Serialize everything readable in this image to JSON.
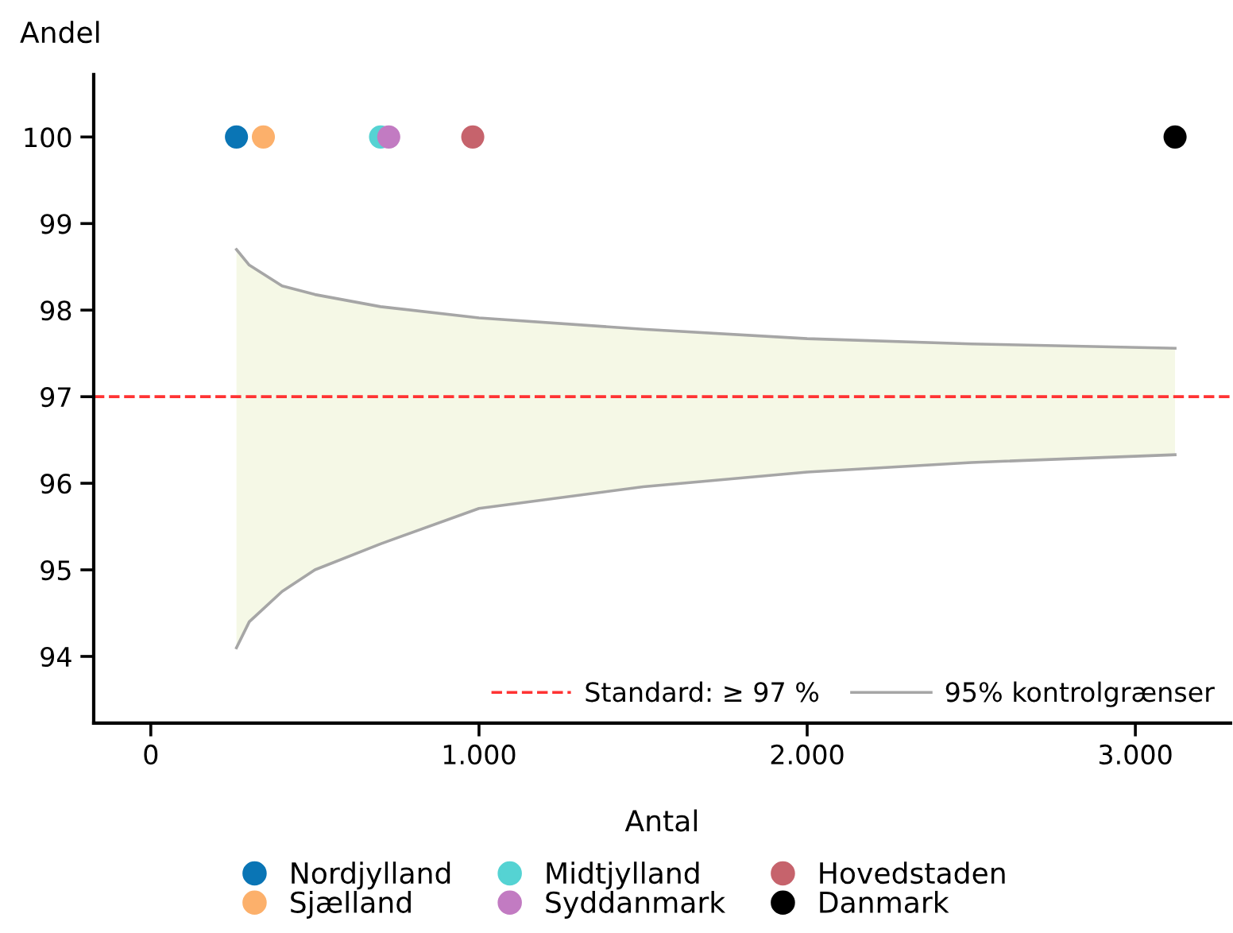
{
  "chart_data": {
    "type": "scatter",
    "xlabel": "Antal",
    "ylabel": "Andel",
    "xlim": [
      -174,
      3290
    ],
    "ylim": [
      93.23,
      100.72
    ],
    "xticks": [
      0,
      {
        "value": 1000,
        "label": "1.000"
      },
      {
        "value": 2000,
        "label": "2.000"
      },
      {
        "value": 3000,
        "label": "3.000"
      }
    ],
    "yticks": [
      94,
      95,
      96,
      97,
      98,
      99,
      100
    ],
    "grid": false,
    "legend": "bottom",
    "marker": "circle",
    "ref_lines": [
      {
        "axis": "y",
        "value": 97,
        "label": "Standard: ≥ 97 %",
        "color": "#ff3333",
        "line_style": "dashed"
      }
    ],
    "series": [
      {
        "type": "line",
        "color": "#f5f8e6",
        "marker": "none",
        "x": [
          261,
          300,
          400,
          500,
          700,
          1000,
          1500,
          2000,
          2500,
          3121
        ],
        "values": [
          null,
          null,
          null,
          null,
          null,
          null,
          null,
          null,
          null,
          null
        ],
        "lower": [
          94.1,
          94.4,
          94.75,
          95.0,
          95.3,
          95.71,
          95.96,
          96.13,
          96.24,
          96.33
        ],
        "upper": [
          98.7,
          98.52,
          98.28,
          98.18,
          98.04,
          97.91,
          97.78,
          97.67,
          97.61,
          97.56
        ]
      },
      {
        "type": "line",
        "name": "95% kontrolgrænser",
        "color": "#a6a6a6",
        "marker": "none",
        "x": [
          261,
          300,
          400,
          500,
          700,
          1000,
          1500,
          2000,
          2500,
          3121
        ],
        "values": [
          98.7,
          98.52,
          98.28,
          98.18,
          98.04,
          97.91,
          97.78,
          97.67,
          97.61,
          97.56
        ]
      },
      {
        "type": "line",
        "color": "#a6a6a6",
        "marker": "none",
        "x": [
          261,
          300,
          400,
          500,
          700,
          1000,
          1500,
          2000,
          2500,
          3121
        ],
        "values": [
          94.1,
          94.4,
          94.75,
          95.0,
          95.3,
          95.71,
          95.96,
          96.13,
          96.24,
          96.33
        ]
      },
      {
        "name": "Nordjylland",
        "color": "#0a75b5",
        "x": [
          261
        ],
        "values": [
          100
        ]
      },
      {
        "name": "Sjælland",
        "color": "#fcb06b",
        "x": [
          343
        ],
        "values": [
          100
        ]
      },
      {
        "name": "Midtjylland",
        "color": "#55d3d3",
        "x": [
          700
        ],
        "values": [
          100
        ]
      },
      {
        "name": "Syddanmark",
        "color": "#c27bc2",
        "x": [
          725
        ],
        "values": [
          100
        ]
      },
      {
        "name": "Hovedstaden",
        "color": "#c6636c",
        "x": [
          981
        ],
        "values": [
          100
        ]
      },
      {
        "name": "Danmark",
        "color": "#000000",
        "x": [
          3121
        ],
        "values": [
          100
        ]
      }
    ]
  }
}
